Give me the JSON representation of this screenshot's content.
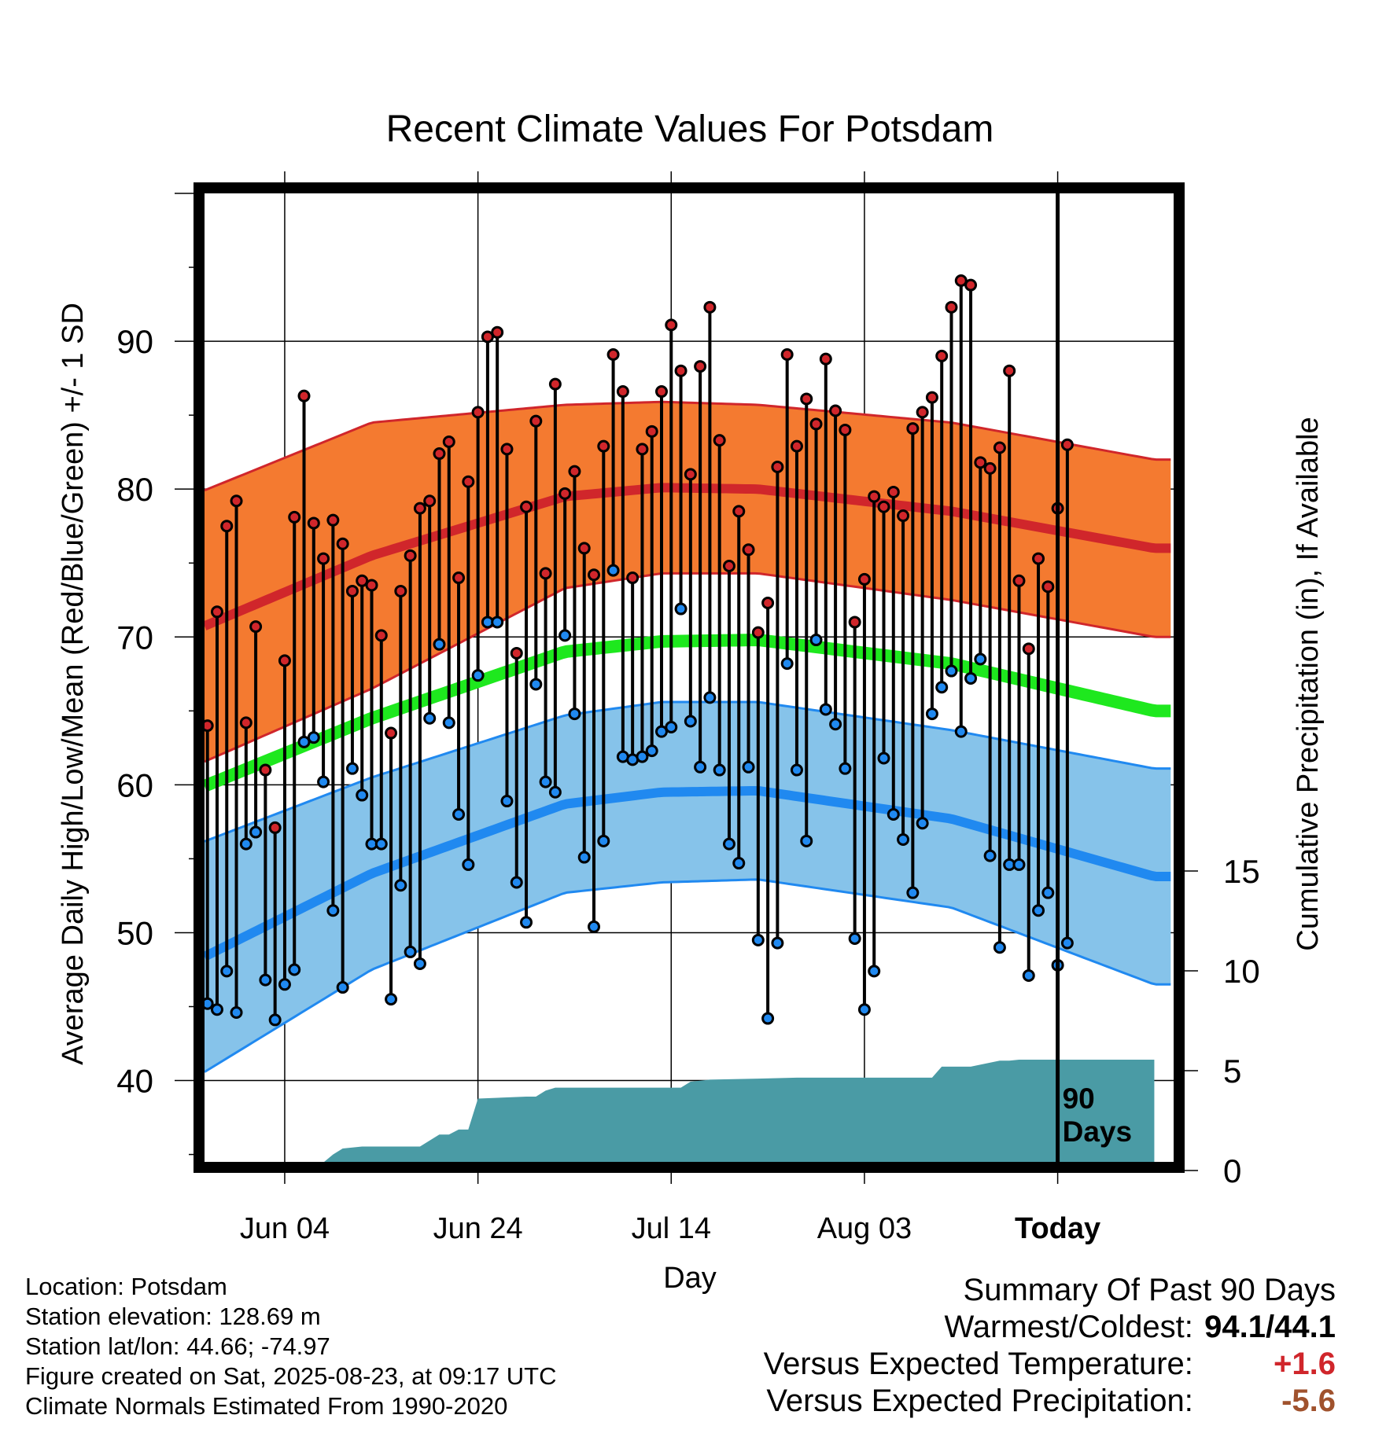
{
  "chart_data": {
    "type": "line",
    "title": "Recent Climate Values For Potsdam",
    "xlabel": "Day",
    "ylabel": "Average Daily High/Low/Mean (Red/Blue/Green) +/- 1 SD",
    "y2label": "Cumulative Precipitation (in), If Available",
    "x_tick_labels": [
      "Jun 04",
      "Jun 24",
      "Jul 14",
      "Aug 03",
      "Today"
    ],
    "x_tick_days": [
      11,
      31,
      51,
      71,
      91
    ],
    "ylim": [
      34.5,
      100
    ],
    "y_ticks": [
      40,
      50,
      60,
      70,
      80,
      90
    ],
    "y2lim": [
      0,
      25
    ],
    "y2_ticks": [
      0,
      5,
      10,
      15
    ],
    "today_label": [
      "90",
      "Days"
    ],
    "colors": {
      "high_band": "#f47a30",
      "high_line": "#d0262b",
      "low_band": "#86c3ea",
      "low_line": "#2089f0",
      "mean_line": "#1ee81e",
      "precip": "#4a9ba5",
      "high_dot": "#d0262b",
      "low_dot": "#2089f0"
    },
    "normals": {
      "days": [
        0,
        20,
        40,
        50,
        60,
        80,
        101
      ],
      "high_mean": [
        70,
        75.5,
        79.5,
        80.1,
        80,
        78.5,
        76
      ],
      "high_sd": [
        9.2,
        9,
        6.2,
        5.8,
        5.7,
        6,
        6
      ],
      "low_mean": [
        47.5,
        54,
        58.7,
        59.5,
        59.6,
        57.7,
        53.8
      ],
      "low_sd": [
        8,
        6.5,
        6,
        6.1,
        6,
        6,
        7.3
      ],
      "mean": [
        59.2,
        64.5,
        69,
        69.7,
        69.8,
        68.2,
        65
      ]
    },
    "daily": {
      "highs": [
        64,
        71.7,
        77.5,
        79.2,
        64.2,
        70.7,
        61,
        57.1,
        68.4,
        78.1,
        86.3,
        77.7,
        75.3,
        77.9,
        76.3,
        73.1,
        73.8,
        73.5,
        70.1,
        63.5,
        73.1,
        75.5,
        78.7,
        79.2,
        82.4,
        83.2,
        74,
        80.5,
        85.2,
        90.3,
        90.6,
        82.7,
        68.9,
        78.8,
        84.6,
        74.3,
        87.1,
        79.7,
        81.2,
        76,
        74.2,
        82.9,
        89.1,
        86.6,
        74,
        82.7,
        83.9,
        86.6,
        91.1,
        88,
        81,
        88.3,
        92.3,
        83.3,
        74.8,
        78.5,
        75.9,
        70.3,
        72.3,
        81.5,
        89.1,
        82.9,
        86.1,
        84.4,
        88.8,
        85.3,
        84,
        71,
        73.9,
        79.5,
        78.8,
        79.8,
        78.2,
        84.1,
        85.2,
        86.2,
        89,
        92.3,
        94.1,
        93.8,
        81.8,
        81.4,
        82.8,
        88,
        73.8,
        69.2,
        75.3,
        73.4,
        78.7,
        83
      ],
      "lows": [
        45.2,
        44.8,
        47.4,
        44.6,
        56,
        56.8,
        46.8,
        44.1,
        46.5,
        47.5,
        62.9,
        63.2,
        60.2,
        51.5,
        46.3,
        61.1,
        59.3,
        56,
        56,
        45.5,
        53.2,
        48.7,
        47.9,
        64.5,
        69.5,
        64.2,
        58,
        54.6,
        67.4,
        71,
        71,
        58.9,
        53.4,
        50.7,
        66.8,
        60.2,
        59.5,
        70.1,
        64.8,
        55.1,
        50.4,
        56.2,
        74.5,
        61.9,
        61.7,
        61.9,
        62.3,
        63.6,
        63.9,
        71.9,
        64.3,
        61.2,
        65.9,
        61,
        56,
        54.7,
        61.2,
        49.5,
        44.2,
        49.3,
        68.2,
        61,
        56.2,
        69.8,
        65.1,
        64.1,
        61.1,
        49.6,
        44.8,
        47.4,
        61.8,
        58,
        56.3,
        52.7,
        57.4,
        64.8,
        66.6,
        67.7,
        63.6,
        67.2,
        68.5,
        55.2,
        49,
        54.6,
        54.6,
        47.1,
        51.5,
        52.7,
        47.8,
        49.3
      ]
    },
    "precip": {
      "days": [
        0,
        6,
        7,
        15,
        16,
        17,
        18,
        19,
        20,
        22,
        25,
        26,
        27,
        28,
        29,
        30,
        31,
        36,
        37,
        38,
        39,
        52,
        53,
        55,
        60,
        64,
        78,
        79,
        80,
        81,
        82,
        85,
        86,
        87,
        101
      ],
      "values": [
        0,
        0,
        0.4,
        0.4,
        0.8,
        1.1,
        1.15,
        1.2,
        1.2,
        1.2,
        1.2,
        1.5,
        1.8,
        1.8,
        2.05,
        2.05,
        3.6,
        3.7,
        3.7,
        4.0,
        4.15,
        4.15,
        4.45,
        4.55,
        4.6,
        4.65,
        4.65,
        5.2,
        5.2,
        5.2,
        5.2,
        5.5,
        5.5,
        5.55,
        5.55
      ]
    }
  },
  "info": {
    "location": "Location: Potsdam",
    "elevation": "Station elevation: 128.69 m",
    "latlon": "Station lat/lon: 44.66; -74.97",
    "created": "Figure created on Sat, 2025-08-23, at 09:17 UTC",
    "normals_note": "Climate Normals Estimated From 1990-2020"
  },
  "summary": {
    "title": "Summary Of Past 90 Days",
    "warm_cold_label": "Warmest/Coldest:",
    "warm_cold_value": "94.1/44.1",
    "temp_label": "Versus Expected Temperature:",
    "temp_value": "+1.6",
    "temp_color": "#d0262b",
    "precip_label": "Versus Expected Precipitation:",
    "precip_value": "-5.6",
    "precip_color": "#a0522d"
  }
}
